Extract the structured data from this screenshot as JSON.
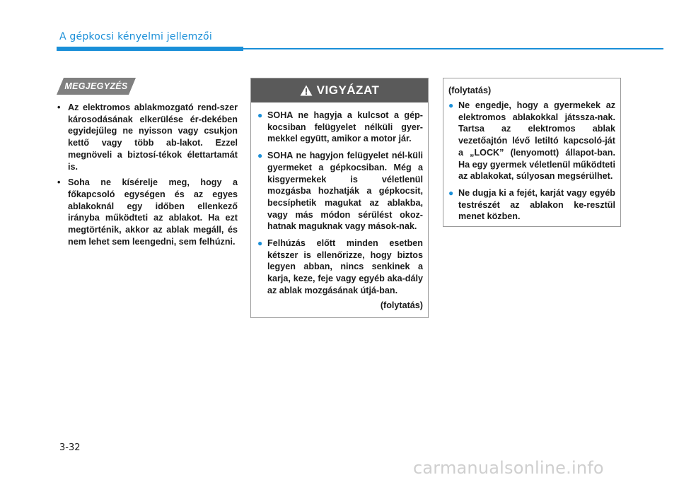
{
  "header": {
    "section_title": "A gépkocsi kényelmi jellemzői"
  },
  "note": {
    "tag": "MEGJEGYZÉS",
    "items": [
      "Az elektromos ablakmozgató rend-szer károsodásának elkerülése ér-dekében egyidejűleg ne nyisson vagy csukjon kettő vagy több ab-lakot. Ezzel megnöveli a biztosí-tékok élettartamát is.",
      "Soha ne kísérelje meg, hogy a főkapcsoló egységen és az egyes ablakoknál egy időben ellenkező irányba működteti az ablakot. Ha ezt megtörténik, akkor az ablak megáll, és nem lehet sem leengedni, sem felhúzni."
    ]
  },
  "warning": {
    "title": "VIGYÁZAT",
    "items": [
      "SOHA ne hagyja a kulcsot a gép-kocsiban felügyelet nélküli gyer-mekkel együtt, amikor a motor jár.",
      "SOHA ne hagyjon felügyelet nél-küli gyermeket a gépkocsiban. Még a kisgyermekek is véletlenül mozgásba hozhatják a gépkocsit, becsíphetik magukat az ablakba, vagy más módon sérülést okoz-hatnak maguknak vagy mások-nak.",
      "Felhúzás előtt minden esetben kétszer is ellenőrizze, hogy biztos legyen abban, nincs senkinek a karja, keze, feje vagy egyéb aka-dály az ablak mozgásának útjá-ban."
    ],
    "continued": "(folytatás)"
  },
  "continued_box": {
    "header": "(folytatás)",
    "items": [
      "Ne engedje, hogy a gyermekek az elektromos ablakokkal játssza-nak. Tartsa az elektromos ablak vezetőajtón lévő letiltó kapcsoló-ját a „LOCK” (lenyomott) állapot-ban. Ha egy gyermek véletlenül működteti az ablakokat, súlyosan megsérülhet.",
      "Ne dugja ki a fejét, karját vagy egyéb testrészét az ablakon ke-resztül menet közben."
    ]
  },
  "footer": {
    "page_number": "3-32",
    "watermark": "carmanualsonline.info"
  },
  "colors": {
    "accent": "#1a8fd8",
    "warning_header": "#5a5a5a",
    "tag": "#808080"
  },
  "icons": {
    "warning": "warning-triangle-icon"
  }
}
